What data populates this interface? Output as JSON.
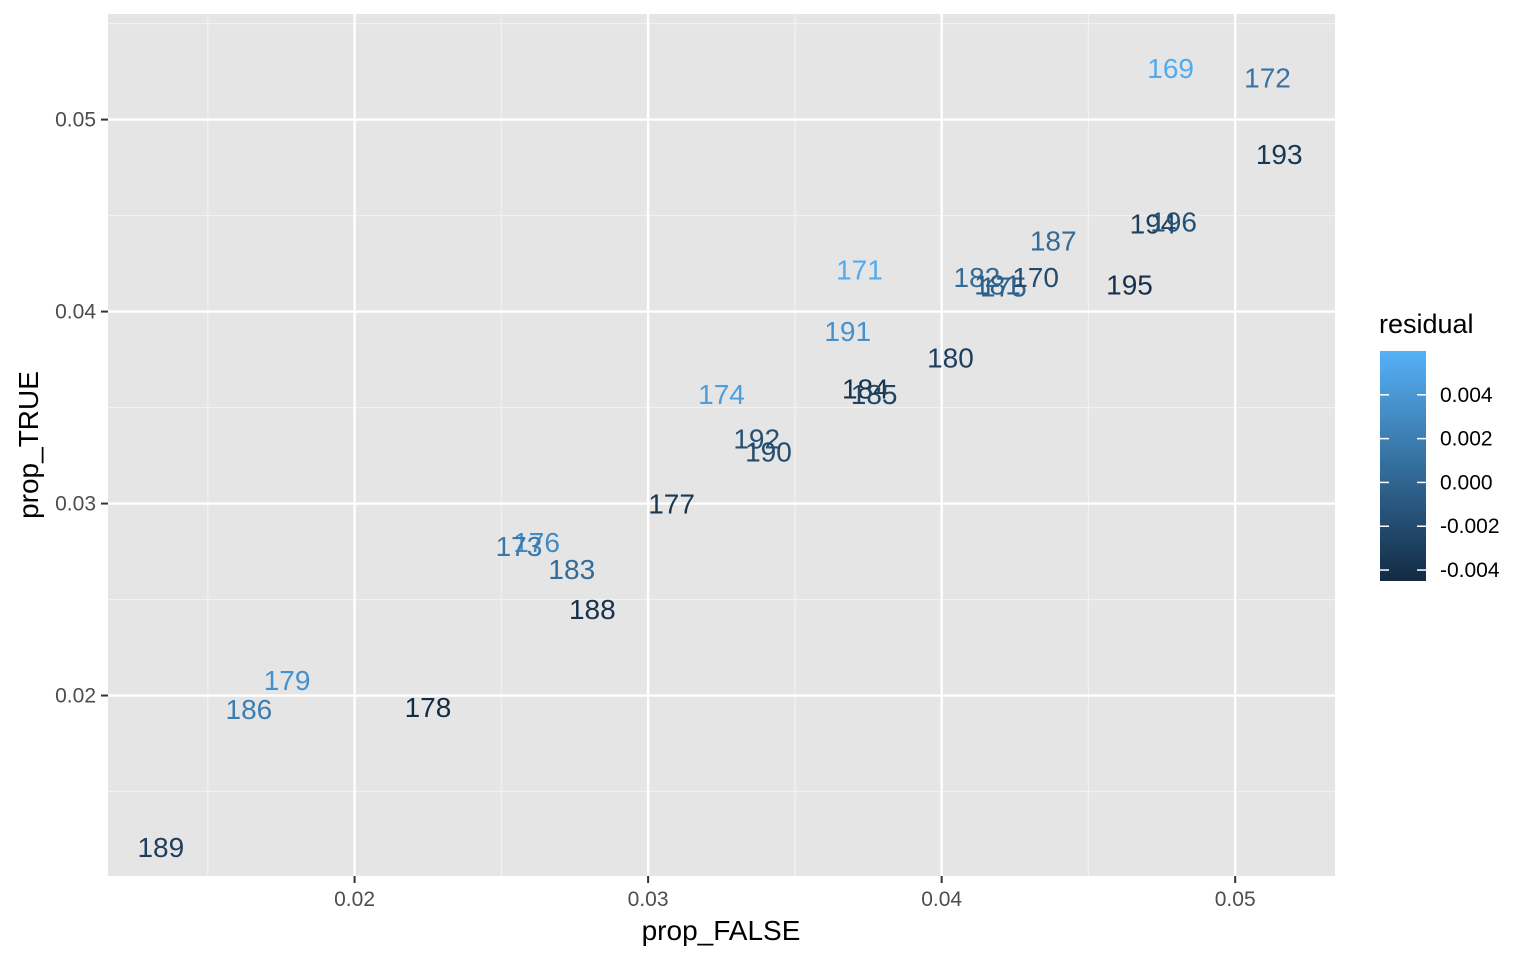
{
  "chart_data": {
    "type": "scatter",
    "xlabel": "prop_FALSE",
    "ylabel": "prop_TRUE",
    "xlim": [
      0.0116,
      0.0534
    ],
    "ylim": [
      0.0106,
      0.0555
    ],
    "x_ticks": [
      0.02,
      0.03,
      0.04,
      0.05
    ],
    "x_tick_labels": [
      "0.02",
      "0.03",
      "0.04",
      "0.05"
    ],
    "y_ticks": [
      0.02,
      0.03,
      0.04,
      0.05
    ],
    "y_tick_labels": [
      "0.02",
      "0.03",
      "0.04",
      "0.05"
    ],
    "grid": true,
    "legend": {
      "title": "residual",
      "placement": "right",
      "color_low": "#132B43",
      "color_high": "#56B1F7",
      "range": [
        -0.0045,
        0.006
      ],
      "breaks": [
        0.004,
        0.002,
        0.0,
        -0.002,
        -0.004
      ],
      "break_labels": [
        "0.004",
        "0.002",
        "0.000",
        "-0.002",
        "-0.004"
      ]
    },
    "points": [
      {
        "label": "169",
        "x": 0.0478,
        "y": 0.0527,
        "residual": 0.0055
      },
      {
        "label": "172",
        "x": 0.0511,
        "y": 0.0522,
        "residual": 0.0012
      },
      {
        "label": "193",
        "x": 0.0515,
        "y": 0.0482,
        "residual": -0.0035
      },
      {
        "label": "194",
        "x": 0.0472,
        "y": 0.0446,
        "residual": -0.003
      },
      {
        "label": "196",
        "x": 0.0479,
        "y": 0.0447,
        "residual": -0.0015
      },
      {
        "label": "187",
        "x": 0.0438,
        "y": 0.0437,
        "residual": 0.0005
      },
      {
        "label": "171",
        "x": 0.0372,
        "y": 0.0422,
        "residual": 0.0055
      },
      {
        "label": "182",
        "x": 0.0412,
        "y": 0.0418,
        "residual": 0.0005
      },
      {
        "label": "181",
        "x": 0.0419,
        "y": 0.0414,
        "residual": -0.0005
      },
      {
        "label": "175",
        "x": 0.0421,
        "y": 0.0413,
        "residual": -0.0002
      },
      {
        "label": "170",
        "x": 0.0432,
        "y": 0.0418,
        "residual": -0.002
      },
      {
        "label": "195",
        "x": 0.0464,
        "y": 0.0414,
        "residual": -0.004
      },
      {
        "label": "191",
        "x": 0.0368,
        "y": 0.039,
        "residual": 0.0035
      },
      {
        "label": "180",
        "x": 0.0403,
        "y": 0.0376,
        "residual": -0.003
      },
      {
        "label": "174",
        "x": 0.0325,
        "y": 0.0357,
        "residual": 0.0045
      },
      {
        "label": "184",
        "x": 0.0374,
        "y": 0.036,
        "residual": -0.004
      },
      {
        "label": "185",
        "x": 0.0377,
        "y": 0.0357,
        "residual": -0.0025
      },
      {
        "label": "192",
        "x": 0.0337,
        "y": 0.0334,
        "residual": -0.0015
      },
      {
        "label": "190",
        "x": 0.0341,
        "y": 0.0327,
        "residual": -0.002
      },
      {
        "label": "177",
        "x": 0.0308,
        "y": 0.03,
        "residual": -0.0035
      },
      {
        "label": "176",
        "x": 0.0262,
        "y": 0.028,
        "residual": 0.003
      },
      {
        "label": "173",
        "x": 0.0256,
        "y": 0.0278,
        "residual": 0.0015
      },
      {
        "label": "183",
        "x": 0.0274,
        "y": 0.0266,
        "residual": 0.0005
      },
      {
        "label": "188",
        "x": 0.0281,
        "y": 0.0245,
        "residual": -0.004
      },
      {
        "label": "179",
        "x": 0.0177,
        "y": 0.0208,
        "residual": 0.0035
      },
      {
        "label": "186",
        "x": 0.0164,
        "y": 0.0193,
        "residual": 0.002
      },
      {
        "label": "178",
        "x": 0.0225,
        "y": 0.0194,
        "residual": -0.0045
      },
      {
        "label": "189",
        "x": 0.0134,
        "y": 0.0121,
        "residual": -0.003
      }
    ]
  }
}
